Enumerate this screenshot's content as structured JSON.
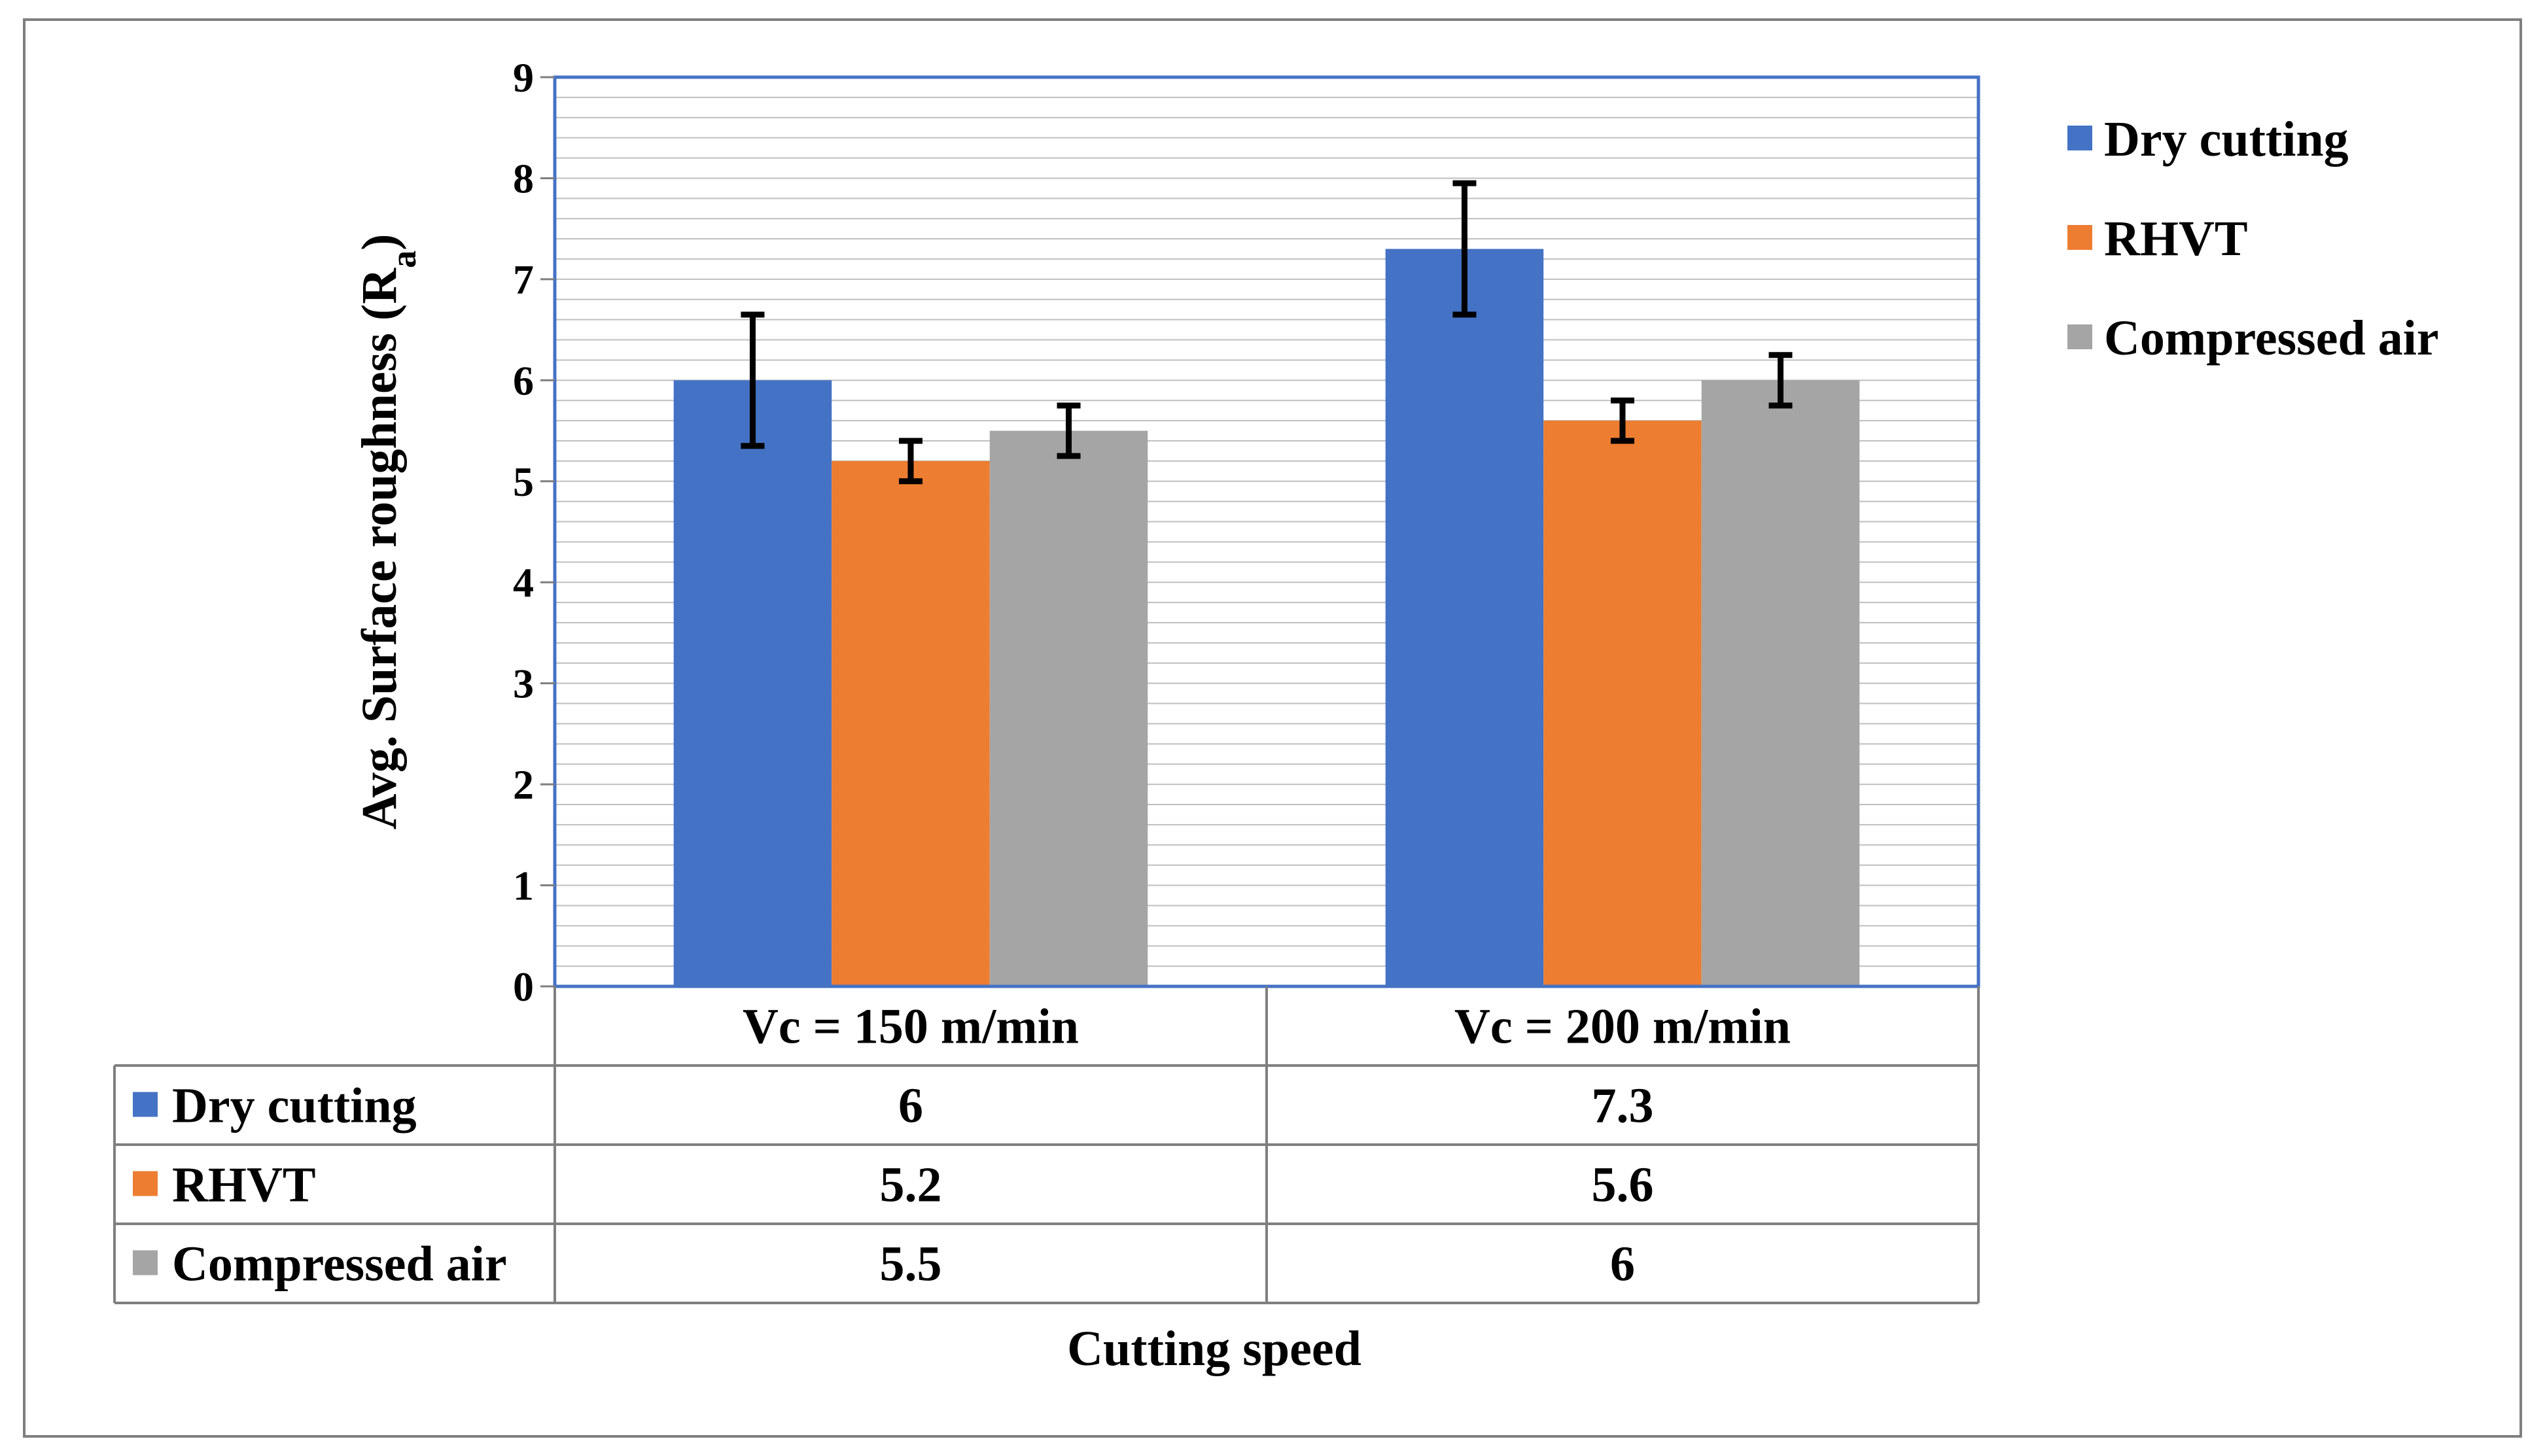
{
  "chart_data": {
    "type": "bar",
    "title": "",
    "xlabel": "Cutting speed",
    "ylabel": {
      "main": "Avg. Surface roughness (R",
      "sub": "a",
      "close": ")"
    },
    "ylim": [
      0,
      9
    ],
    "yticks": [
      0,
      1,
      2,
      3,
      4,
      5,
      6,
      7,
      8,
      9
    ],
    "grid": true,
    "legend_position": "right",
    "categories": [
      "Vc = 150 m/min",
      "Vc = 200 m/min"
    ],
    "series": [
      {
        "name": "Dry cutting",
        "color": "#4472C4",
        "values": [
          6,
          7.3
        ],
        "labels": [
          "6",
          "7.3"
        ],
        "error_low": [
          5.35,
          6.65
        ],
        "error_high": [
          6.65,
          7.95
        ]
      },
      {
        "name": "RHVT",
        "color": "#ED7D31",
        "values": [
          5.2,
          5.6
        ],
        "labels": [
          "5.2",
          "5.6"
        ],
        "error_low": [
          5.0,
          5.4
        ],
        "error_high": [
          5.4,
          5.8
        ]
      },
      {
        "name": "Compressed air",
        "color": "#A5A5A5",
        "values": [
          5.5,
          6
        ],
        "labels": [
          "5.5",
          "6"
        ],
        "error_low": [
          5.25,
          5.75
        ],
        "error_high": [
          5.75,
          6.25
        ]
      }
    ],
    "data_table": true
  }
}
